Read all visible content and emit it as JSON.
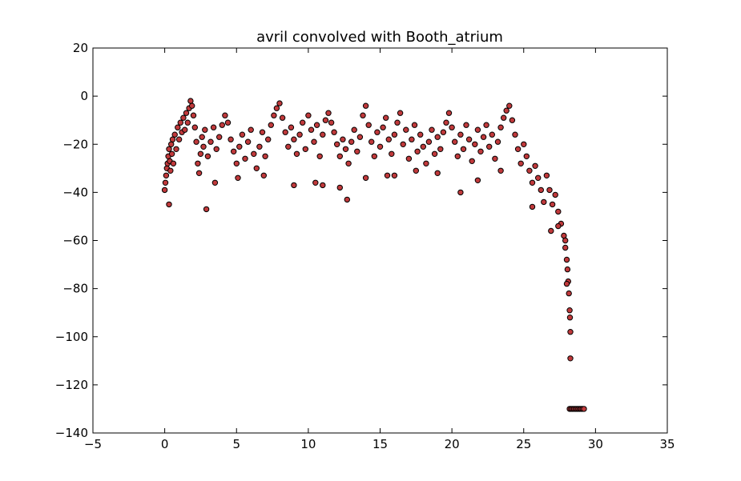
{
  "chart_data": {
    "type": "scatter",
    "title": "avril convolved with Booth_atrium",
    "xlabel": "",
    "ylabel": "",
    "xlim": [
      -5,
      35
    ],
    "ylim": [
      -140,
      20
    ],
    "x_ticks": [
      -5,
      0,
      5,
      10,
      15,
      20,
      25,
      30,
      35
    ],
    "y_ticks": [
      20,
      0,
      -20,
      -40,
      -60,
      -80,
      -100,
      -120,
      -140
    ],
    "x_tick_labels": [
      "−5",
      "0",
      "5",
      "10",
      "15",
      "20",
      "25",
      "30",
      "35"
    ],
    "y_tick_labels": [
      "20",
      "0",
      "−20",
      "−40",
      "−60",
      "−80",
      "−100",
      "−120",
      "−140"
    ],
    "grid": false,
    "legend": "none",
    "marker_color": "#c0393b",
    "marker_edge_color": "#000000",
    "series": [
      {
        "points": [
          [
            0.0,
            -39
          ],
          [
            0.05,
            -36
          ],
          [
            0.1,
            -33
          ],
          [
            0.15,
            -30
          ],
          [
            0.2,
            -28
          ],
          [
            0.25,
            -25
          ],
          [
            0.3,
            -22
          ],
          [
            0.35,
            -27
          ],
          [
            0.4,
            -31
          ],
          [
            0.45,
            -20
          ],
          [
            0.5,
            -24
          ],
          [
            0.55,
            -18
          ],
          [
            0.6,
            -28
          ],
          [
            0.7,
            -16
          ],
          [
            0.8,
            -22
          ],
          [
            0.9,
            -13
          ],
          [
            1.0,
            -18
          ],
          [
            1.1,
            -11
          ],
          [
            1.2,
            -15
          ],
          [
            1.3,
            -9
          ],
          [
            1.4,
            -14
          ],
          [
            1.5,
            -7
          ],
          [
            1.6,
            -11
          ],
          [
            1.7,
            -5
          ],
          [
            1.8,
            -2
          ],
          [
            1.9,
            -4
          ],
          [
            2.0,
            -8
          ],
          [
            2.1,
            -13
          ],
          [
            2.2,
            -19
          ],
          [
            2.3,
            -28
          ],
          [
            2.4,
            -32
          ],
          [
            2.5,
            -24
          ],
          [
            2.6,
            -17
          ],
          [
            2.7,
            -21
          ],
          [
            2.8,
            -14
          ],
          [
            3.0,
            -25
          ],
          [
            3.2,
            -19
          ],
          [
            3.4,
            -13
          ],
          [
            3.6,
            -22
          ],
          [
            3.8,
            -17
          ],
          [
            4.0,
            -12
          ],
          [
            4.2,
            -8
          ],
          [
            4.4,
            -11
          ],
          [
            4.6,
            -18
          ],
          [
            4.8,
            -23
          ],
          [
            5.0,
            -28
          ],
          [
            5.2,
            -21
          ],
          [
            5.4,
            -16
          ],
          [
            5.6,
            -26
          ],
          [
            5.8,
            -19
          ],
          [
            6.0,
            -14
          ],
          [
            6.2,
            -24
          ],
          [
            6.4,
            -30
          ],
          [
            6.6,
            -21
          ],
          [
            6.8,
            -15
          ],
          [
            7.0,
            -25
          ],
          [
            7.2,
            -18
          ],
          [
            7.4,
            -12
          ],
          [
            7.6,
            -8
          ],
          [
            7.8,
            -5
          ],
          [
            8.0,
            -3
          ],
          [
            8.2,
            -9
          ],
          [
            8.4,
            -15
          ],
          [
            8.6,
            -21
          ],
          [
            8.8,
            -13
          ],
          [
            9.0,
            -18
          ],
          [
            9.2,
            -24
          ],
          [
            9.4,
            -16
          ],
          [
            9.6,
            -11
          ],
          [
            9.8,
            -22
          ],
          [
            10.0,
            -8
          ],
          [
            10.2,
            -14
          ],
          [
            10.4,
            -19
          ],
          [
            10.6,
            -12
          ],
          [
            10.8,
            -25
          ],
          [
            11.0,
            -16
          ],
          [
            11.2,
            -10
          ],
          [
            11.4,
            -7
          ],
          [
            11.6,
            -11
          ],
          [
            11.8,
            -15
          ],
          [
            12.0,
            -20
          ],
          [
            12.2,
            -25
          ],
          [
            12.4,
            -18
          ],
          [
            12.6,
            -22
          ],
          [
            12.8,
            -28
          ],
          [
            13.0,
            -19
          ],
          [
            13.2,
            -14
          ],
          [
            13.4,
            -23
          ],
          [
            13.6,
            -17
          ],
          [
            13.8,
            -8
          ],
          [
            14.0,
            -4
          ],
          [
            14.2,
            -12
          ],
          [
            14.4,
            -19
          ],
          [
            14.6,
            -25
          ],
          [
            14.8,
            -15
          ],
          [
            15.0,
            -21
          ],
          [
            15.2,
            -13
          ],
          [
            15.4,
            -9
          ],
          [
            15.6,
            -18
          ],
          [
            15.8,
            -24
          ],
          [
            16.0,
            -16
          ],
          [
            16.2,
            -11
          ],
          [
            16.4,
            -7
          ],
          [
            16.6,
            -20
          ],
          [
            16.8,
            -14
          ],
          [
            17.0,
            -26
          ],
          [
            17.2,
            -18
          ],
          [
            17.4,
            -12
          ],
          [
            17.6,
            -23
          ],
          [
            17.8,
            -16
          ],
          [
            18.0,
            -21
          ],
          [
            18.2,
            -28
          ],
          [
            18.4,
            -19
          ],
          [
            18.6,
            -14
          ],
          [
            18.8,
            -24
          ],
          [
            19.0,
            -17
          ],
          [
            19.2,
            -22
          ],
          [
            19.4,
            -15
          ],
          [
            19.6,
            -11
          ],
          [
            19.8,
            -7
          ],
          [
            20.0,
            -13
          ],
          [
            20.2,
            -19
          ],
          [
            20.4,
            -25
          ],
          [
            20.6,
            -16
          ],
          [
            20.8,
            -22
          ],
          [
            21.0,
            -12
          ],
          [
            21.2,
            -18
          ],
          [
            21.4,
            -27
          ],
          [
            21.6,
            -20
          ],
          [
            21.8,
            -14
          ],
          [
            22.0,
            -23
          ],
          [
            22.2,
            -17
          ],
          [
            22.4,
            -12
          ],
          [
            22.6,
            -21
          ],
          [
            22.8,
            -16
          ],
          [
            23.0,
            -26
          ],
          [
            23.2,
            -19
          ],
          [
            23.4,
            -13
          ],
          [
            23.6,
            -9
          ],
          [
            23.8,
            -6
          ],
          [
            24.0,
            -4
          ],
          [
            24.2,
            -10
          ],
          [
            24.4,
            -16
          ],
          [
            24.6,
            -22
          ],
          [
            24.8,
            -28
          ],
          [
            25.0,
            -20
          ],
          [
            25.2,
            -25
          ],
          [
            25.4,
            -31
          ],
          [
            25.6,
            -36
          ],
          [
            25.8,
            -29
          ],
          [
            26.0,
            -34
          ],
          [
            26.2,
            -39
          ],
          [
            26.4,
            -44
          ],
          [
            26.6,
            -33
          ],
          [
            26.8,
            -39
          ],
          [
            27.0,
            -45
          ],
          [
            27.2,
            -41
          ],
          [
            27.4,
            -48
          ],
          [
            27.6,
            -53
          ],
          [
            27.8,
            -58
          ],
          [
            27.9,
            -63
          ],
          [
            28.0,
            -68
          ],
          [
            28.05,
            -72
          ],
          [
            28.1,
            -77
          ],
          [
            28.15,
            -82
          ],
          [
            28.2,
            -89
          ],
          [
            28.22,
            -92
          ],
          [
            28.25,
            -98
          ],
          [
            28.25,
            -109
          ],
          [
            28.0,
            -78
          ],
          [
            27.9,
            -60
          ],
          [
            0.3,
            -45
          ],
          [
            2.9,
            -47
          ],
          [
            12.7,
            -43
          ],
          [
            9.0,
            -37
          ],
          [
            20.6,
            -40
          ],
          [
            3.5,
            -36
          ],
          [
            6.9,
            -33
          ],
          [
            15.5,
            -33
          ],
          [
            23.4,
            -31
          ],
          [
            17.5,
            -31
          ],
          [
            5.1,
            -34
          ],
          [
            10.5,
            -36
          ],
          [
            11.0,
            -37
          ],
          [
            12.2,
            -38
          ],
          [
            16.0,
            -33
          ],
          [
            14.0,
            -34
          ],
          [
            19.0,
            -32
          ],
          [
            21.8,
            -35
          ],
          [
            25.6,
            -46
          ],
          [
            26.9,
            -56
          ],
          [
            27.4,
            -54
          ],
          [
            28.2,
            -130
          ],
          [
            28.3,
            -130
          ],
          [
            28.4,
            -130
          ],
          [
            28.5,
            -130
          ],
          [
            28.6,
            -130
          ],
          [
            28.7,
            -130
          ],
          [
            28.8,
            -130
          ],
          [
            28.9,
            -130
          ],
          [
            29.0,
            -130
          ],
          [
            29.1,
            -130
          ],
          [
            29.2,
            -130
          ]
        ]
      }
    ]
  }
}
